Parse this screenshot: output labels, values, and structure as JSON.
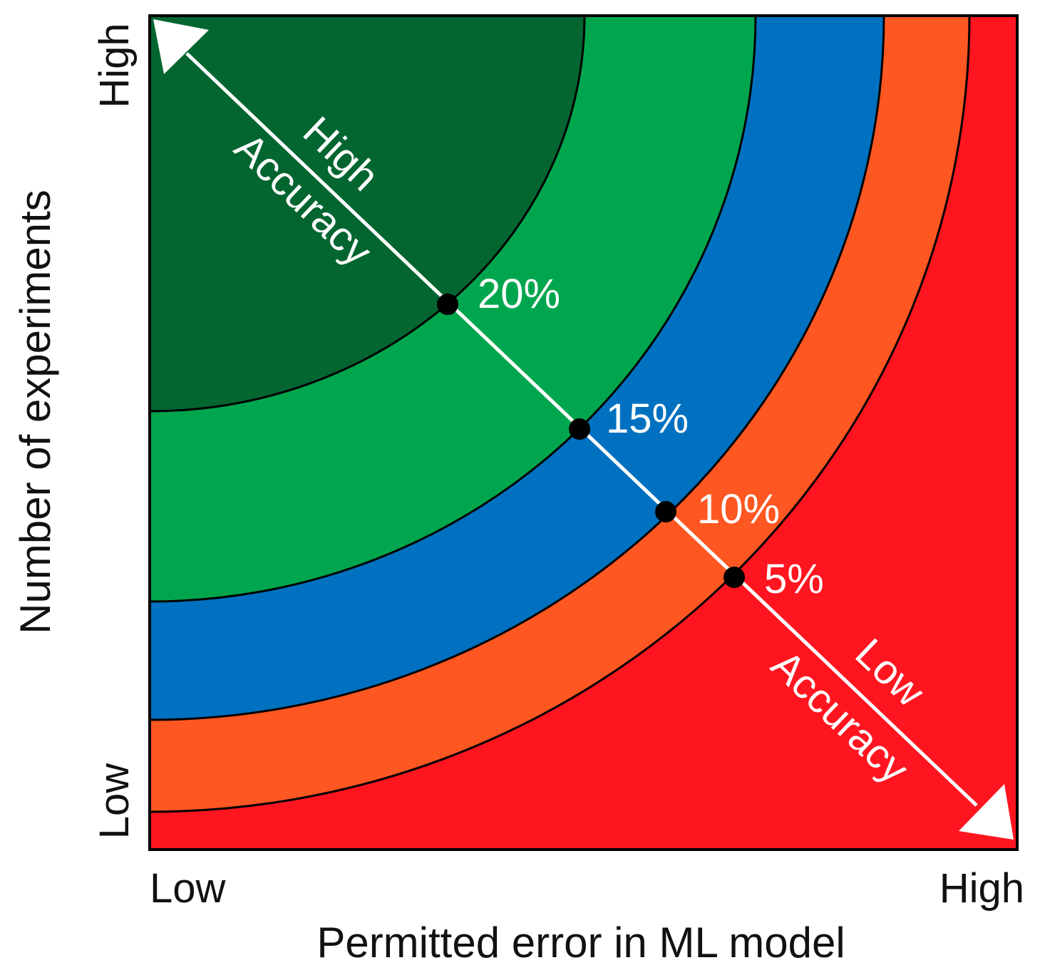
{
  "diagram": {
    "x_axis": {
      "title": "Permitted error in ML model",
      "low": "Low",
      "high": "High"
    },
    "y_axis": {
      "title": "Number of experiments",
      "low": "Low",
      "high": "High"
    },
    "arrow": {
      "top_line1": "High",
      "top_line2": "Accuracy",
      "bottom_line1": "Low",
      "bottom_line2": "Accuracy"
    },
    "zones": [
      {
        "label": "20%",
        "color": "#036530"
      },
      {
        "label": "15%",
        "color": "#00A64D"
      },
      {
        "label": "10%",
        "color": "#0071C0"
      },
      {
        "label": "5%",
        "color": "#FF5722"
      },
      {
        "label": "",
        "color": "#FF1520"
      }
    ]
  }
}
